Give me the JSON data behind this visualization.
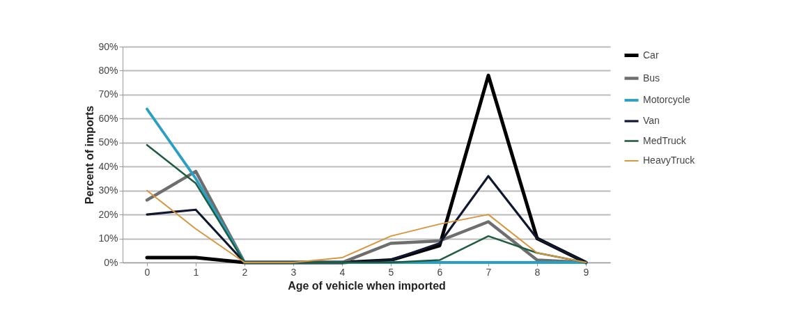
{
  "chart_data": {
    "type": "line",
    "xlabel": "Age of vehicle when imported",
    "ylabel": "Percent of imports",
    "categories": [
      "0",
      "1",
      "2",
      "3",
      "4",
      "5",
      "6",
      "7",
      "8",
      "9"
    ],
    "series": [
      {
        "name": "Car",
        "color": "#000000",
        "values": [
          2,
          2,
          0,
          0,
          0,
          1,
          7,
          78,
          10,
          0
        ]
      },
      {
        "name": "Bus",
        "color": "#6e6e6e",
        "values": [
          26,
          38,
          0,
          0,
          0,
          8,
          9,
          17,
          1,
          0
        ]
      },
      {
        "name": "Motorcycle",
        "color": "#2a9fc4",
        "values": [
          64,
          35,
          0,
          0,
          0,
          0,
          0,
          0,
          0,
          0
        ]
      },
      {
        "name": "Van",
        "color": "#101830",
        "values": [
          20,
          22,
          0,
          0,
          0,
          1,
          8,
          36,
          10,
          0
        ]
      },
      {
        "name": "MedTruck",
        "color": "#1f5c40",
        "values": [
          49,
          33,
          0,
          0,
          0,
          0,
          1,
          11,
          4,
          0
        ]
      },
      {
        "name": "HeavyTruck",
        "color": "#d9953e",
        "values": [
          30,
          14,
          0,
          0,
          2,
          11,
          16,
          20,
          4,
          0
        ]
      }
    ],
    "ylim": [
      0,
      90
    ],
    "yticks": [
      {
        "value": 0,
        "label": "0%"
      },
      {
        "value": 10,
        "label": "10%"
      },
      {
        "value": 20,
        "label": "20%"
      },
      {
        "value": 30,
        "label": "30%"
      },
      {
        "value": 40,
        "label": "40%"
      },
      {
        "value": 50,
        "label": "50%"
      },
      {
        "value": 60,
        "label": "60%"
      },
      {
        "value": 70,
        "label": "70%"
      },
      {
        "value": 80,
        "label": "80%"
      },
      {
        "value": 90,
        "label": "90%"
      }
    ],
    "grid": "y",
    "legend": "right",
    "marker": "none",
    "line_style": "solid"
  }
}
